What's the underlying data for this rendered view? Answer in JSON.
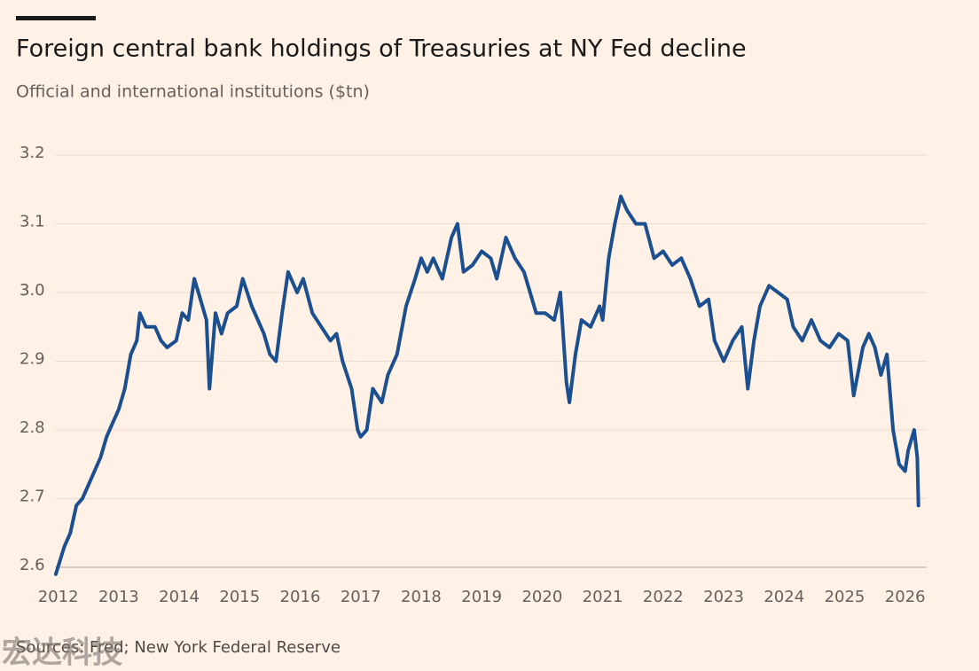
{
  "chart_data": {
    "type": "line",
    "title": "Foreign central bank holdings of Treasuries at NY Fed decline",
    "subtitle": "Official and international institutions ($tn)",
    "source": "Sources: Fred; New York Federal Reserve",
    "watermark": "宏达科技",
    "color": "#1b4f8f",
    "grid": true,
    "xlim": [
      2011.8,
      2026.4
    ],
    "xticks": [
      2012,
      2013,
      2014,
      2015,
      2016,
      2017,
      2018,
      2019,
      2020,
      2021,
      2022,
      2023,
      2024,
      2025,
      2026
    ],
    "ylim": [
      2.6,
      3.2
    ],
    "yticks": [
      2.6,
      2.7,
      2.8,
      2.9,
      3.0,
      {
        "value": 3.0,
        "label": "3.0"
      },
      3.1,
      3.2
    ],
    "x": [
      2011.96,
      2012.1,
      2012.2,
      2012.3,
      2012.4,
      2012.5,
      2012.6,
      2012.7,
      2012.8,
      2012.9,
      2013.0,
      2013.1,
      2013.2,
      2013.3,
      2013.35,
      2013.45,
      2013.6,
      2013.7,
      2013.8,
      2013.95,
      2014.05,
      2014.15,
      2014.25,
      2014.35,
      2014.45,
      2014.5,
      2014.6,
      2014.7,
      2014.8,
      2014.95,
      2015.05,
      2015.2,
      2015.3,
      2015.4,
      2015.5,
      2015.6,
      2015.7,
      2015.8,
      2015.95,
      2016.05,
      2016.2,
      2016.35,
      2016.5,
      2016.6,
      2016.7,
      2016.85,
      2016.95,
      2017.0,
      2017.1,
      2017.2,
      2017.35,
      2017.45,
      2017.6,
      2017.75,
      2017.9,
      2018.0,
      2018.1,
      2018.2,
      2018.35,
      2018.5,
      2018.6,
      2018.7,
      2018.85,
      2019.0,
      2019.15,
      2019.25,
      2019.4,
      2019.55,
      2019.7,
      2019.8,
      2019.9,
      2020.05,
      2020.2,
      2020.3,
      2020.4,
      2020.45,
      2020.55,
      2020.65,
      2020.8,
      2020.95,
      2021.0,
      2021.1,
      2021.2,
      2021.3,
      2021.4,
      2021.55,
      2021.7,
      2021.85,
      2022.0,
      2022.15,
      2022.3,
      2022.45,
      2022.6,
      2022.75,
      2022.85,
      2023.0,
      2023.15,
      2023.3,
      2023.4,
      2023.5,
      2023.6,
      2023.75,
      2023.9,
      2024.05,
      2024.15,
      2024.3,
      2024.45,
      2024.6,
      2024.75,
      2024.9,
      2025.05,
      2025.15,
      2025.3,
      2025.4,
      2025.5,
      2025.6,
      2025.7,
      2025.8,
      2025.9,
      2026.0,
      2026.05,
      2026.15,
      2026.2,
      2026.22
    ],
    "values": [
      2.59,
      2.63,
      2.65,
      2.69,
      2.7,
      2.72,
      2.74,
      2.76,
      2.79,
      2.81,
      2.83,
      2.86,
      2.91,
      2.93,
      2.97,
      2.95,
      2.95,
      2.93,
      2.92,
      2.93,
      2.97,
      2.96,
      3.02,
      2.99,
      2.96,
      2.86,
      2.97,
      2.94,
      2.97,
      2.98,
      3.02,
      2.98,
      2.96,
      2.94,
      2.91,
      2.9,
      2.97,
      3.03,
      3.0,
      3.02,
      2.97,
      2.95,
      2.93,
      2.94,
      2.9,
      2.86,
      2.8,
      2.79,
      2.8,
      2.86,
      2.84,
      2.88,
      2.91,
      2.98,
      3.02,
      3.05,
      3.03,
      3.05,
      3.02,
      3.08,
      3.1,
      3.03,
      3.04,
      3.06,
      3.05,
      3.02,
      3.08,
      3.05,
      3.03,
      3.0,
      2.97,
      2.97,
      2.96,
      3.0,
      2.87,
      2.84,
      2.91,
      2.96,
      2.95,
      2.98,
      2.96,
      3.05,
      3.1,
      3.14,
      3.12,
      3.1,
      3.1,
      3.05,
      3.06,
      3.04,
      3.05,
      3.02,
      2.98,
      2.99,
      2.93,
      2.9,
      2.93,
      2.95,
      2.86,
      2.93,
      2.98,
      3.01,
      3.0,
      2.99,
      2.95,
      2.93,
      2.96,
      2.93,
      2.92,
      2.94,
      2.93,
      2.85,
      2.92,
      2.94,
      2.92,
      2.88,
      2.91,
      2.8,
      2.75,
      2.74,
      2.77,
      2.8,
      2.76,
      2.69
    ]
  }
}
